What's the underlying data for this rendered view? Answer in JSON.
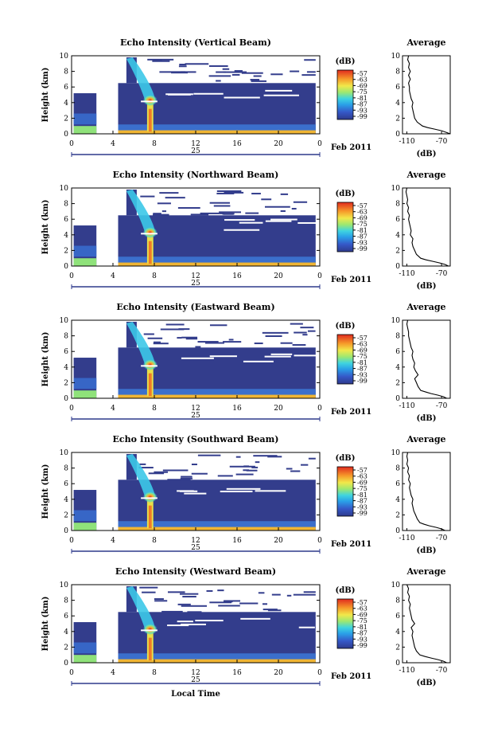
{
  "chart_data": [
    {
      "type": "heatmap",
      "title": "Echo Intensity (Vertical Beam)",
      "ylabel": "Height (km)",
      "xticks": [
        "0",
        "4",
        "8",
        "12",
        "16",
        "20",
        "0"
      ],
      "yticks": [
        "0",
        "2",
        "4",
        "6",
        "8",
        "10"
      ],
      "date_day": "25",
      "date_month": "Feb 2011",
      "ylim": [
        0,
        10
      ],
      "xlim": [
        0,
        24
      ],
      "colorbar_unit": "(dB)",
      "colorbar_ticks": [
        "-57",
        "-63",
        "-69",
        "-75",
        "-81",
        "-87",
        "-93",
        "-99"
      ],
      "average_title": "Average",
      "average_xlabel": "(dB)",
      "average_xticks": [
        "-110",
        "-70"
      ],
      "average_profile": [
        [
          -60,
          0
        ],
        [
          -65,
          0.2
        ],
        [
          -70,
          0.4
        ],
        [
          -78,
          0.6
        ],
        [
          -86,
          0.8
        ],
        [
          -92,
          1.0
        ],
        [
          -98,
          1.5
        ],
        [
          -101,
          2.0
        ],
        [
          -102,
          2.5
        ],
        [
          -103,
          3.0
        ],
        [
          -104,
          3.5
        ],
        [
          -103,
          4.0
        ],
        [
          -105,
          4.5
        ],
        [
          -106,
          5.0
        ],
        [
          -107,
          5.5
        ],
        [
          -107,
          6.0
        ],
        [
          -108,
          6.5
        ],
        [
          -106,
          7.0
        ],
        [
          -108,
          7.5
        ],
        [
          -106,
          8.0
        ],
        [
          -108,
          8.5
        ],
        [
          -107,
          9.0
        ],
        [
          -109,
          9.5
        ],
        [
          -108,
          10.0
        ]
      ]
    },
    {
      "type": "heatmap",
      "title": "Echo Intensity (Northward Beam)",
      "ylabel": "Height (km)",
      "xticks": [
        "0",
        "4",
        "8",
        "12",
        "16",
        "20",
        "0"
      ],
      "yticks": [
        "0",
        "2",
        "4",
        "6",
        "8",
        "10"
      ],
      "date_day": "25",
      "date_month": "Feb 2011",
      "ylim": [
        0,
        10
      ],
      "xlim": [
        0,
        24
      ],
      "colorbar_unit": "(dB)",
      "colorbar_ticks": [
        "-57",
        "-63",
        "-69",
        "-75",
        "-81",
        "-87",
        "-93",
        "-99"
      ],
      "average_title": "Average",
      "average_xlabel": "(dB)",
      "average_xticks": [
        "-110",
        "-70"
      ],
      "average_profile": [
        [
          -62,
          0
        ],
        [
          -66,
          0.2
        ],
        [
          -72,
          0.4
        ],
        [
          -80,
          0.6
        ],
        [
          -88,
          0.8
        ],
        [
          -94,
          1.0
        ],
        [
          -99,
          1.5
        ],
        [
          -101,
          2.0
        ],
        [
          -103,
          2.5
        ],
        [
          -104,
          3.0
        ],
        [
          -103,
          3.5
        ],
        [
          -106,
          4.0
        ],
        [
          -105,
          4.5
        ],
        [
          -106,
          5.0
        ],
        [
          -107,
          5.5
        ],
        [
          -108,
          6.0
        ],
        [
          -107,
          6.5
        ],
        [
          -109,
          7.0
        ],
        [
          -108,
          7.5
        ],
        [
          -110,
          8.0
        ],
        [
          -109,
          8.5
        ],
        [
          -110,
          9.0
        ],
        [
          -111,
          9.5
        ],
        [
          -110,
          10.0
        ]
      ]
    },
    {
      "type": "heatmap",
      "title": "Echo Intensity (Eastward Beam)",
      "ylabel": "Height (km)",
      "xticks": [
        "0",
        "4",
        "8",
        "12",
        "16",
        "20",
        "0"
      ],
      "yticks": [
        "0",
        "2",
        "4",
        "6",
        "8",
        "10"
      ],
      "date_day": "25",
      "date_month": "Feb 2011",
      "ylim": [
        0,
        10
      ],
      "xlim": [
        0,
        24
      ],
      "colorbar_unit": "(dB)",
      "colorbar_ticks": [
        "-57",
        "-63",
        "-69",
        "-75",
        "-81",
        "-87",
        "-93",
        "-99"
      ],
      "average_title": "Average",
      "average_xlabel": "(dB)",
      "average_xticks": [
        "-110",
        "-70"
      ],
      "average_profile": [
        [
          -64,
          0
        ],
        [
          -68,
          0.2
        ],
        [
          -74,
          0.4
        ],
        [
          -82,
          0.6
        ],
        [
          -88,
          0.8
        ],
        [
          -94,
          1.0
        ],
        [
          -97,
          1.5
        ],
        [
          -99,
          2.0
        ],
        [
          -101,
          2.5
        ],
        [
          -97,
          3.0
        ],
        [
          -100,
          3.5
        ],
        [
          -102,
          4.0
        ],
        [
          -101,
          4.5
        ],
        [
          -103,
          5.0
        ],
        [
          -104,
          5.5
        ],
        [
          -103,
          6.0
        ],
        [
          -105,
          6.5
        ],
        [
          -106,
          7.0
        ],
        [
          -107,
          7.5
        ],
        [
          -108,
          8.0
        ],
        [
          -108,
          8.5
        ],
        [
          -109,
          9.0
        ],
        [
          -110,
          9.5
        ],
        [
          -109,
          10.0
        ]
      ]
    },
    {
      "type": "heatmap",
      "title": "Echo Intensity (Southward Beam)",
      "ylabel": "Height (km)",
      "xticks": [
        "0",
        "4",
        "8",
        "12",
        "16",
        "20",
        "0"
      ],
      "yticks": [
        "0",
        "2",
        "4",
        "6",
        "8",
        "10"
      ],
      "date_day": "25",
      "date_month": "Feb 2011",
      "ylim": [
        0,
        10
      ],
      "xlim": [
        0,
        24
      ],
      "colorbar_unit": "(dB)",
      "colorbar_ticks": [
        "-57",
        "-63",
        "-69",
        "-75",
        "-81",
        "-87",
        "-93",
        "-99"
      ],
      "average_title": "Average",
      "average_xlabel": "(dB)",
      "average_xticks": [
        "-110",
        "-70"
      ],
      "average_profile": [
        [
          -66,
          0
        ],
        [
          -70,
          0.2
        ],
        [
          -76,
          0.4
        ],
        [
          -84,
          0.6
        ],
        [
          -90,
          0.8
        ],
        [
          -95,
          1.0
        ],
        [
          -98,
          1.5
        ],
        [
          -100,
          2.0
        ],
        [
          -102,
          2.5
        ],
        [
          -103,
          3.0
        ],
        [
          -104,
          3.5
        ],
        [
          -103,
          4.0
        ],
        [
          -105,
          4.5
        ],
        [
          -106,
          5.0
        ],
        [
          -107,
          5.5
        ],
        [
          -106,
          6.0
        ],
        [
          -108,
          6.5
        ],
        [
          -107,
          7.0
        ],
        [
          -109,
          7.5
        ],
        [
          -108,
          8.0
        ],
        [
          -110,
          8.5
        ],
        [
          -109,
          9.0
        ],
        [
          -110,
          9.5
        ],
        [
          -109,
          10.0
        ]
      ]
    },
    {
      "type": "heatmap",
      "title": "Echo Intensity (Westward Beam)",
      "ylabel": "Height (km)",
      "xlabel": "Local Time",
      "xticks": [
        "0",
        "4",
        "8",
        "12",
        "16",
        "20",
        "0"
      ],
      "yticks": [
        "0",
        "2",
        "4",
        "6",
        "8",
        "10"
      ],
      "date_day": "25",
      "date_month": "Feb 2011",
      "ylim": [
        0,
        10
      ],
      "xlim": [
        0,
        24
      ],
      "colorbar_unit": "(dB)",
      "colorbar_ticks": [
        "-57",
        "-63",
        "-69",
        "-75",
        "-81",
        "-87",
        "-93",
        "-99"
      ],
      "average_title": "Average",
      "average_xlabel": "(dB)",
      "average_xticks": [
        "-110",
        "-70"
      ],
      "average_profile": [
        [
          -64,
          0
        ],
        [
          -68,
          0.2
        ],
        [
          -74,
          0.4
        ],
        [
          -82,
          0.6
        ],
        [
          -89,
          0.8
        ],
        [
          -95,
          1.0
        ],
        [
          -99,
          1.5
        ],
        [
          -101,
          2.0
        ],
        [
          -102,
          2.5
        ],
        [
          -103,
          3.0
        ],
        [
          -104,
          3.5
        ],
        [
          -103,
          4.0
        ],
        [
          -105,
          4.5
        ],
        [
          -101,
          5.0
        ],
        [
          -104,
          5.5
        ],
        [
          -105,
          6.0
        ],
        [
          -106,
          6.5
        ],
        [
          -107,
          7.0
        ],
        [
          -106,
          7.5
        ],
        [
          -108,
          8.0
        ],
        [
          -107,
          8.5
        ],
        [
          -109,
          9.0
        ],
        [
          -108,
          9.5
        ],
        [
          -110,
          10.0
        ]
      ]
    }
  ]
}
